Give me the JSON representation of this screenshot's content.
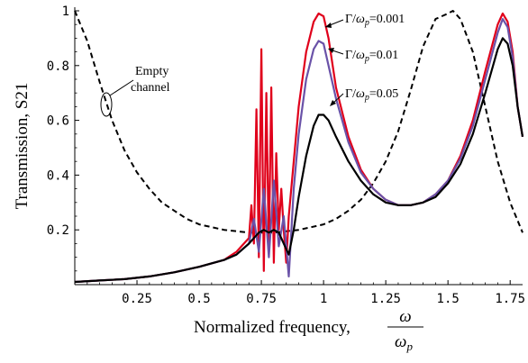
{
  "chart_data": {
    "type": "line",
    "xlabel": {
      "text": "Normalized frequency,",
      "fraction_numerator": "ω",
      "fraction_denominator": "ω",
      "fraction_denominator_subscript": "p"
    },
    "ylabel": "Transmission, S21",
    "xlim": [
      0.0,
      1.8
    ],
    "ylim": [
      0.0,
      1.0
    ],
    "x_ticks": [
      0.25,
      0.5,
      0.75,
      1.0,
      1.25,
      1.5,
      1.75
    ],
    "x_tick_labels": [
      "0.25",
      "0.5",
      "0.75",
      "1",
      "1.25",
      "1.5",
      "1.75"
    ],
    "y_ticks": [
      0.2,
      0.4,
      0.6,
      0.8,
      1.0
    ],
    "y_tick_labels": [
      "0.2",
      "0.4",
      "0.6",
      "0.8",
      "1"
    ],
    "grid": false,
    "series": [
      {
        "name": "Empty channel",
        "color": "#000000",
        "dash": "dashed",
        "x": [
          0.0,
          0.05,
          0.1,
          0.15,
          0.2,
          0.25,
          0.3,
          0.35,
          0.4,
          0.45,
          0.5,
          0.55,
          0.6,
          0.65,
          0.7,
          0.75,
          0.8,
          0.85,
          0.9,
          0.95,
          1.0,
          1.05,
          1.1,
          1.15,
          1.2,
          1.25,
          1.3,
          1.35,
          1.4,
          1.45,
          1.5,
          1.52,
          1.55,
          1.6,
          1.65,
          1.7,
          1.75,
          1.8
        ],
        "values": [
          1.0,
          0.89,
          0.74,
          0.6,
          0.49,
          0.41,
          0.35,
          0.3,
          0.27,
          0.24,
          0.22,
          0.21,
          0.2,
          0.195,
          0.19,
          0.19,
          0.19,
          0.195,
          0.2,
          0.21,
          0.22,
          0.24,
          0.27,
          0.31,
          0.37,
          0.45,
          0.56,
          0.71,
          0.87,
          0.97,
          0.99,
          1.0,
          0.97,
          0.85,
          0.65,
          0.45,
          0.3,
          0.19
        ]
      },
      {
        "name": "Γ/ωp=0.001",
        "color": "#e0001b",
        "dash": "solid",
        "x": [
          0.0,
          0.1,
          0.2,
          0.3,
          0.4,
          0.5,
          0.6,
          0.65,
          0.7,
          0.71,
          0.72,
          0.73,
          0.74,
          0.75,
          0.76,
          0.77,
          0.78,
          0.79,
          0.8,
          0.81,
          0.82,
          0.83,
          0.84,
          0.85,
          0.86,
          0.88,
          0.9,
          0.93,
          0.96,
          0.98,
          1.0,
          1.02,
          1.05,
          1.1,
          1.15,
          1.2,
          1.25,
          1.3,
          1.35,
          1.4,
          1.45,
          1.5,
          1.55,
          1.6,
          1.65,
          1.7,
          1.72,
          1.74,
          1.76,
          1.78,
          1.8
        ],
        "values": [
          0.01,
          0.015,
          0.02,
          0.03,
          0.045,
          0.065,
          0.09,
          0.12,
          0.17,
          0.29,
          0.15,
          0.64,
          0.1,
          0.86,
          0.05,
          0.7,
          0.12,
          0.72,
          0.08,
          0.48,
          0.2,
          0.35,
          0.2,
          0.08,
          0.25,
          0.45,
          0.65,
          0.85,
          0.96,
          0.99,
          0.98,
          0.9,
          0.72,
          0.54,
          0.42,
          0.35,
          0.31,
          0.29,
          0.29,
          0.3,
          0.33,
          0.38,
          0.47,
          0.6,
          0.78,
          0.95,
          0.99,
          0.96,
          0.85,
          0.65,
          0.54
        ]
      },
      {
        "name": "Γ/ωp=0.01",
        "color": "#6a52a8",
        "dash": "solid",
        "x": [
          0.0,
          0.1,
          0.2,
          0.3,
          0.4,
          0.5,
          0.6,
          0.65,
          0.7,
          0.72,
          0.74,
          0.76,
          0.78,
          0.8,
          0.82,
          0.84,
          0.86,
          0.88,
          0.9,
          0.93,
          0.96,
          0.98,
          1.0,
          1.02,
          1.05,
          1.1,
          1.15,
          1.2,
          1.25,
          1.3,
          1.35,
          1.4,
          1.45,
          1.5,
          1.55,
          1.6,
          1.65,
          1.7,
          1.72,
          1.74,
          1.76,
          1.78,
          1.8
        ],
        "values": [
          0.01,
          0.015,
          0.02,
          0.03,
          0.045,
          0.065,
          0.09,
          0.11,
          0.15,
          0.24,
          0.12,
          0.35,
          0.1,
          0.38,
          0.14,
          0.25,
          0.03,
          0.35,
          0.55,
          0.75,
          0.86,
          0.89,
          0.88,
          0.8,
          0.68,
          0.52,
          0.41,
          0.35,
          0.31,
          0.29,
          0.29,
          0.3,
          0.33,
          0.38,
          0.46,
          0.58,
          0.75,
          0.92,
          0.97,
          0.94,
          0.83,
          0.65,
          0.54
        ]
      },
      {
        "name": "Γ/ωp=0.05",
        "color": "#000000",
        "dash": "solid",
        "x": [
          0.0,
          0.1,
          0.2,
          0.3,
          0.4,
          0.5,
          0.6,
          0.65,
          0.7,
          0.72,
          0.74,
          0.76,
          0.78,
          0.8,
          0.82,
          0.84,
          0.86,
          0.88,
          0.9,
          0.93,
          0.96,
          0.98,
          1.0,
          1.02,
          1.05,
          1.1,
          1.15,
          1.2,
          1.25,
          1.3,
          1.35,
          1.4,
          1.45,
          1.5,
          1.55,
          1.6,
          1.65,
          1.7,
          1.72,
          1.74,
          1.76,
          1.78,
          1.8
        ],
        "values": [
          0.01,
          0.015,
          0.02,
          0.03,
          0.045,
          0.065,
          0.09,
          0.11,
          0.15,
          0.17,
          0.19,
          0.2,
          0.19,
          0.2,
          0.19,
          0.15,
          0.11,
          0.2,
          0.32,
          0.47,
          0.58,
          0.62,
          0.62,
          0.6,
          0.54,
          0.45,
          0.38,
          0.33,
          0.3,
          0.29,
          0.29,
          0.3,
          0.32,
          0.37,
          0.44,
          0.55,
          0.7,
          0.86,
          0.9,
          0.88,
          0.8,
          0.65,
          0.54
        ]
      }
    ],
    "annotations": [
      {
        "text_prefix": "Γ/",
        "text_omega": "ω",
        "text_sub": "p",
        "text_value": "=0.001"
      },
      {
        "text_prefix": "Γ/",
        "text_omega": "ω",
        "text_sub": "p",
        "text_value": "=0.01"
      },
      {
        "text_prefix": "Γ/",
        "text_omega": "ω",
        "text_sub": "p",
        "text_value": "=0.05"
      }
    ],
    "empty_label_lines": [
      "Empty",
      "channel"
    ]
  }
}
